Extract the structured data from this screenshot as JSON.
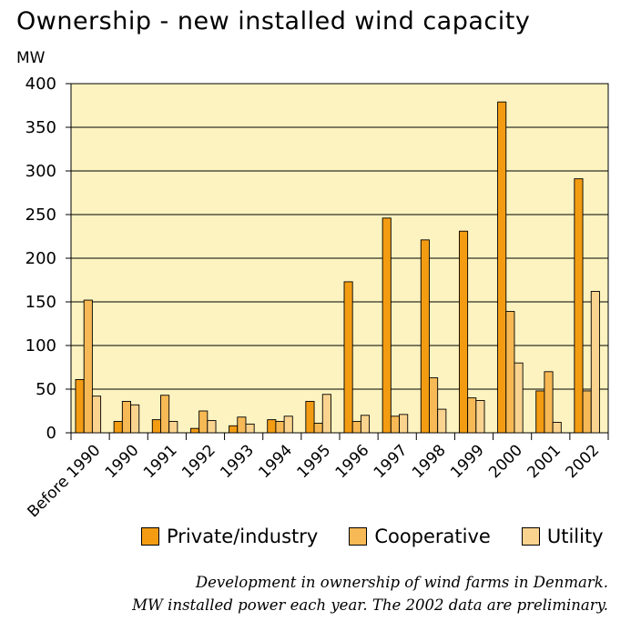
{
  "title": "Ownership - new installed wind capacity",
  "unit_label": "MW",
  "caption": [
    "Development in ownership of wind farms in Denmark.",
    "MW installed power each year. The 2002 data are preliminary."
  ],
  "colors": {
    "plot_background": "#FCF3C0",
    "private_industry": "#F39C12",
    "cooperative": "#F7B955",
    "utility": "#FAD38F"
  },
  "chart_data": {
    "type": "bar",
    "title": "Ownership - new installed wind capacity",
    "ylabel": "MW",
    "xlabel": "",
    "ylim": [
      0,
      400
    ],
    "yticks": [
      0,
      50,
      100,
      150,
      200,
      250,
      300,
      350,
      400
    ],
    "grid": true,
    "legend_position": "bottom",
    "categories": [
      "Before 1990",
      "1990",
      "1991",
      "1992",
      "1993",
      "1994",
      "1995",
      "1996",
      "1997",
      "1998",
      "1999",
      "2000",
      "2001",
      "2002"
    ],
    "series": [
      {
        "name": "Private/industry",
        "color": "#F39C12",
        "values": [
          61,
          13,
          15,
          5,
          8,
          15,
          36,
          173,
          246,
          221,
          231,
          379,
          48,
          291
        ]
      },
      {
        "name": "Cooperative",
        "color": "#F7B955",
        "values": [
          152,
          36,
          43,
          25,
          18,
          13,
          11,
          13,
          19,
          63,
          40,
          139,
          70,
          48
        ]
      },
      {
        "name": "Utility",
        "color": "#FAD38F",
        "values": [
          42,
          32,
          13,
          14,
          10,
          19,
          44,
          20,
          21,
          27,
          37,
          80,
          12,
          162
        ]
      }
    ]
  }
}
